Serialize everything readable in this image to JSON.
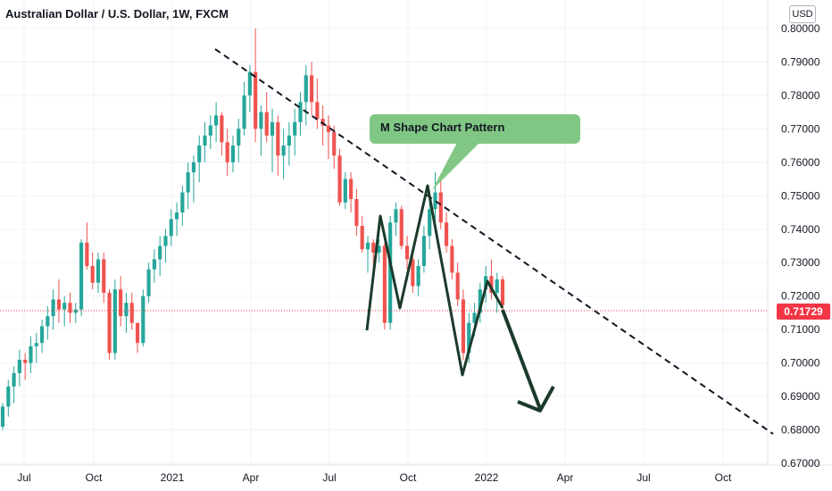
{
  "chart_title": "Australian Dollar / U.S. Dollar, 1W, FXCM",
  "currency_button": "USD",
  "annotation": "M Shape Chart Pattern",
  "current_price_label": "0.71729",
  "colors": {
    "up": "#26a69a",
    "down": "#ef5350",
    "callout": "#81c784",
    "pattern": "#1b3a2a",
    "price_line": "#f23645"
  },
  "chart_data": {
    "type": "candlestick",
    "title": "Australian Dollar / U.S. Dollar, 1W, FXCM",
    "y_range": [
      0.6695,
      0.8085
    ],
    "y_ticks": [
      "0.80000",
      "0.79000",
      "0.78000",
      "0.77000",
      "0.76000",
      "0.75000",
      "0.74000",
      "0.73000",
      "0.72000",
      "0.71000",
      "0.70000",
      "0.69000",
      "0.68000",
      "0.67000"
    ],
    "x_ticks": [
      "Jul",
      "Oct",
      "2021",
      "Apr",
      "Jul",
      "Oct",
      "2022",
      "Apr",
      "Jul",
      "Oct"
    ],
    "current_price": 0.71729,
    "candles": [
      [
        0.681,
        0.688,
        0.68,
        0.687
      ],
      [
        0.687,
        0.695,
        0.684,
        0.693
      ],
      [
        0.693,
        0.699,
        0.688,
        0.697
      ],
      [
        0.697,
        0.704,
        0.693,
        0.701
      ],
      [
        0.701,
        0.703,
        0.695,
        0.7
      ],
      [
        0.7,
        0.708,
        0.697,
        0.705
      ],
      [
        0.705,
        0.709,
        0.7,
        0.706
      ],
      [
        0.706,
        0.713,
        0.703,
        0.711
      ],
      [
        0.711,
        0.717,
        0.707,
        0.714
      ],
      [
        0.714,
        0.722,
        0.71,
        0.719
      ],
      [
        0.719,
        0.725,
        0.712,
        0.716
      ],
      [
        0.716,
        0.72,
        0.711,
        0.718
      ],
      [
        0.718,
        0.721,
        0.712,
        0.715
      ],
      [
        0.715,
        0.718,
        0.712,
        0.716
      ],
      [
        0.716,
        0.737,
        0.714,
        0.736
      ],
      [
        0.736,
        0.742,
        0.728,
        0.729
      ],
      [
        0.729,
        0.733,
        0.722,
        0.724
      ],
      [
        0.724,
        0.733,
        0.721,
        0.731
      ],
      [
        0.731,
        0.733,
        0.718,
        0.721
      ],
      [
        0.721,
        0.722,
        0.701,
        0.703
      ],
      [
        0.703,
        0.725,
        0.701,
        0.722
      ],
      [
        0.722,
        0.726,
        0.711,
        0.714
      ],
      [
        0.714,
        0.721,
        0.709,
        0.718
      ],
      [
        0.718,
        0.721,
        0.71,
        0.712
      ],
      [
        0.712,
        0.712,
        0.703,
        0.706
      ],
      [
        0.706,
        0.722,
        0.705,
        0.72
      ],
      [
        0.72,
        0.73,
        0.718,
        0.728
      ],
      [
        0.728,
        0.734,
        0.724,
        0.731
      ],
      [
        0.731,
        0.738,
        0.726,
        0.735
      ],
      [
        0.735,
        0.74,
        0.73,
        0.738
      ],
      [
        0.738,
        0.746,
        0.735,
        0.743
      ],
      [
        0.743,
        0.748,
        0.738,
        0.745
      ],
      [
        0.745,
        0.753,
        0.741,
        0.751
      ],
      [
        0.751,
        0.76,
        0.746,
        0.757
      ],
      [
        0.757,
        0.762,
        0.748,
        0.76
      ],
      [
        0.76,
        0.768,
        0.754,
        0.765
      ],
      [
        0.765,
        0.772,
        0.76,
        0.768
      ],
      [
        0.768,
        0.774,
        0.764,
        0.771
      ],
      [
        0.771,
        0.778,
        0.766,
        0.774
      ],
      [
        0.774,
        0.775,
        0.762,
        0.766
      ],
      [
        0.766,
        0.77,
        0.756,
        0.76
      ],
      [
        0.76,
        0.768,
        0.757,
        0.765
      ],
      [
        0.765,
        0.773,
        0.76,
        0.77
      ],
      [
        0.77,
        0.784,
        0.768,
        0.78
      ],
      [
        0.78,
        0.789,
        0.775,
        0.787
      ],
      [
        0.787,
        0.8,
        0.766,
        0.77
      ],
      [
        0.77,
        0.777,
        0.762,
        0.775
      ],
      [
        0.775,
        0.781,
        0.766,
        0.768
      ],
      [
        0.768,
        0.776,
        0.757,
        0.772
      ],
      [
        0.772,
        0.774,
        0.756,
        0.762
      ],
      [
        0.762,
        0.77,
        0.755,
        0.765
      ],
      [
        0.765,
        0.772,
        0.759,
        0.768
      ],
      [
        0.768,
        0.776,
        0.762,
        0.772
      ],
      [
        0.772,
        0.781,
        0.768,
        0.778
      ],
      [
        0.778,
        0.789,
        0.771,
        0.786
      ],
      [
        0.786,
        0.79,
        0.774,
        0.778
      ],
      [
        0.778,
        0.785,
        0.77,
        0.773
      ],
      [
        0.773,
        0.777,
        0.765,
        0.771
      ],
      [
        0.771,
        0.774,
        0.761,
        0.769
      ],
      [
        0.769,
        0.771,
        0.758,
        0.762
      ],
      [
        0.762,
        0.764,
        0.747,
        0.748
      ],
      [
        0.748,
        0.757,
        0.746,
        0.755
      ],
      [
        0.755,
        0.757,
        0.745,
        0.749
      ],
      [
        0.749,
        0.752,
        0.738,
        0.741
      ],
      [
        0.741,
        0.744,
        0.733,
        0.734
      ],
      [
        0.734,
        0.738,
        0.727,
        0.736
      ],
      [
        0.736,
        0.737,
        0.728,
        0.733
      ],
      [
        0.733,
        0.737,
        0.73,
        0.735
      ],
      [
        0.735,
        0.736,
        0.71,
        0.712
      ],
      [
        0.712,
        0.744,
        0.71,
        0.742
      ],
      [
        0.742,
        0.748,
        0.738,
        0.746
      ],
      [
        0.746,
        0.747,
        0.734,
        0.735
      ],
      [
        0.735,
        0.738,
        0.728,
        0.731
      ],
      [
        0.731,
        0.733,
        0.721,
        0.723
      ],
      [
        0.723,
        0.731,
        0.72,
        0.729
      ],
      [
        0.729,
        0.741,
        0.727,
        0.738
      ],
      [
        0.738,
        0.749,
        0.734,
        0.746
      ],
      [
        0.746,
        0.757,
        0.742,
        0.751
      ],
      [
        0.751,
        0.755,
        0.74,
        0.742
      ],
      [
        0.742,
        0.745,
        0.733,
        0.735
      ],
      [
        0.735,
        0.737,
        0.725,
        0.727
      ],
      [
        0.727,
        0.73,
        0.717,
        0.719
      ],
      [
        0.719,
        0.722,
        0.701,
        0.703
      ],
      [
        0.703,
        0.715,
        0.7,
        0.712
      ],
      [
        0.712,
        0.718,
        0.708,
        0.715
      ],
      [
        0.715,
        0.724,
        0.712,
        0.722
      ],
      [
        0.722,
        0.729,
        0.718,
        0.726
      ],
      [
        0.726,
        0.731,
        0.719,
        0.721
      ],
      [
        0.721,
        0.727,
        0.715,
        0.725
      ],
      [
        0.725,
        0.726,
        0.716,
        0.7173
      ]
    ]
  }
}
